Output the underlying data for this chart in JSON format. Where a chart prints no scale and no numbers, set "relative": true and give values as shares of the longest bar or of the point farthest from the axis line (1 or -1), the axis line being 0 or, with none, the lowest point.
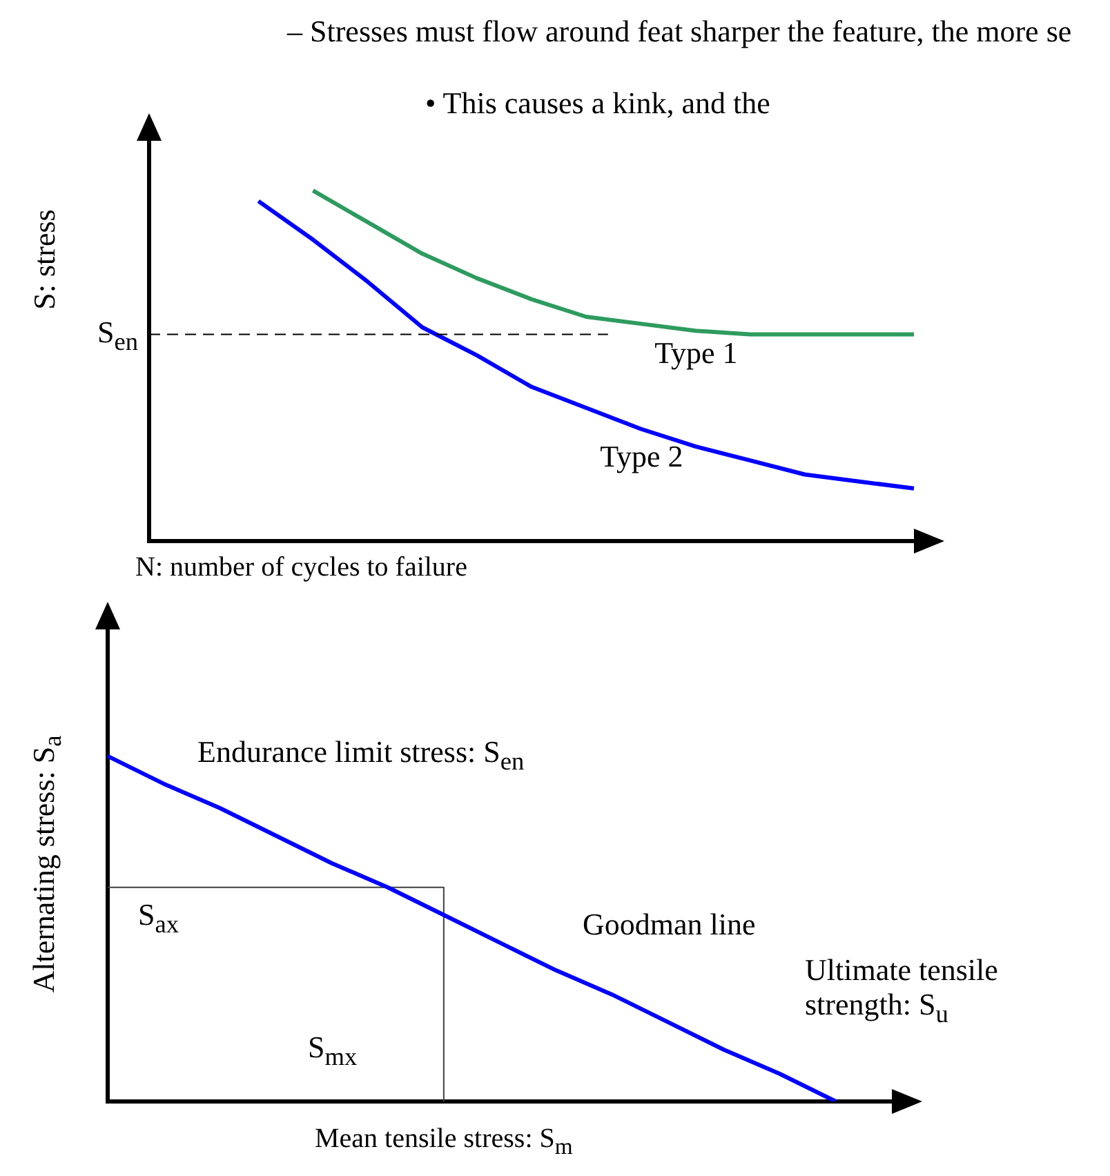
{
  "chart_data": [
    {
      "type": "line",
      "relative": true,
      "xlabel": "N: number of cycles to failure",
      "ylabel": "S: stress",
      "categories": [
        null,
        null,
        null,
        null,
        null,
        null,
        null,
        null,
        null,
        null,
        null,
        null,
        null,
        null,
        null
      ],
      "series": [
        {
          "name": "Type 1",
          "color": "#2e9b5f",
          "values": [
            null,
            null,
            null,
            1,
            0.91,
            0.82,
            0.75,
            0.69,
            0.64,
            0.62,
            0.6,
            0.59,
            0.59,
            0.59,
            0.59
          ]
        },
        {
          "name": "Type 2",
          "color": "#0000ff",
          "values": [
            null,
            null,
            0.97,
            0.86,
            0.74,
            0.61,
            0.53,
            0.44,
            0.38,
            0.32,
            0.27,
            0.23,
            0.19,
            0.17,
            0.15
          ]
        }
      ],
      "ref_lines": [
        {
          "axis": "y",
          "value": 0.59,
          "label": "S$_{en}$",
          "color": "#000000",
          "line_style": "dashed"
        }
      ],
      "annotations": [
        "– Stresses must flow around feat sharper the feature, the more se",
        "• This causes a kink, and the"
      ]
    },
    {
      "type": "line",
      "relative": true,
      "xlabel": "Mean tensile stress: S$_{m}$",
      "ylabel": "Alternating stress: S$_{a}$",
      "categories": [
        null,
        null,
        null,
        null,
        null,
        null,
        null,
        null,
        null,
        null,
        null,
        null,
        null,
        null,
        null
      ],
      "series": [
        {
          "name": "Goodman line",
          "color": "#0000ff",
          "values": [
            1,
            0.92,
            0.85,
            0.77,
            0.69,
            0.62,
            0.54,
            0.46,
            0.38,
            0.31,
            0.23,
            0.15,
            0.08,
            0,
            null
          ]
        },
        {
          "type": "step",
          "color": "#404040",
          "values": [
            0.62,
            0.62,
            0.62,
            0.62,
            0.62,
            0.62,
            0,
            null,
            null,
            null,
            null,
            null,
            null,
            null,
            null
          ]
        }
      ],
      "annotations": [
        "Endurance limit stress: S$_{en}$",
        "S$_{ax}$",
        "S$_{mx}$",
        "Ultimate tensile strength: S$_{u}$"
      ]
    }
  ]
}
